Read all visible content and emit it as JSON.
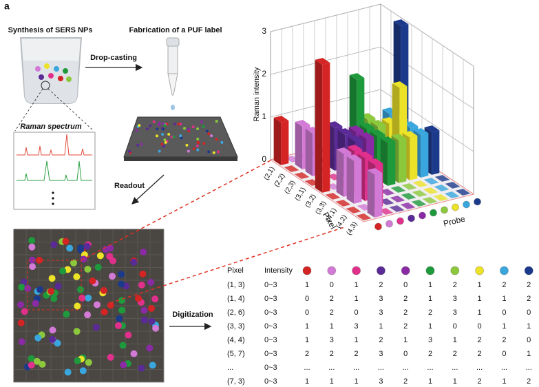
{
  "panel_label": "a",
  "steps": {
    "synthesis": "Synthesis of SERS NPs",
    "fabrication": "Fabrication of a PUF label",
    "drop_casting": "Drop-casting",
    "spectrum": "Raman spectrum",
    "readout": "Readout",
    "digitization": "Digitization"
  },
  "probe_colors": [
    "#d42424",
    "#d27ad6",
    "#e0308c",
    "#5a2a96",
    "#8a2aa4",
    "#1e9a3c",
    "#8cc83c",
    "#ece228",
    "#3aa6de",
    "#1c3a8c"
  ],
  "raman_plot": {
    "z_label": "Raman intensity",
    "zticks": [
      0,
      1,
      2,
      3
    ],
    "pixel_label": "Pixel",
    "probe_label": "Probe",
    "pixels": [
      "(2,1)",
      "(2,2)",
      "(2,3)",
      "(3,1)",
      "(3,2)",
      "(3,3)",
      "(4,1)",
      "(4,2)",
      "(4,3)"
    ],
    "heights": [
      [
        1,
        0,
        0,
        0,
        0,
        0,
        0,
        0,
        0,
        0
      ],
      [
        0,
        1,
        0,
        0,
        0,
        0,
        0,
        0,
        0,
        0
      ],
      [
        0,
        1,
        0,
        1,
        0,
        2,
        1,
        0,
        1,
        3
      ],
      [
        0,
        0,
        0,
        1,
        1,
        1,
        1,
        1,
        1,
        0
      ],
      [
        3,
        0,
        0,
        1,
        1,
        1,
        0,
        2,
        1,
        0
      ],
      [
        0,
        1,
        1,
        0,
        0,
        1,
        1,
        1,
        1,
        1
      ],
      [
        0,
        1,
        1,
        0,
        0,
        0,
        0,
        0,
        0,
        0
      ],
      [
        0,
        0,
        1,
        0,
        0,
        0,
        0,
        0,
        0,
        0
      ],
      [
        0,
        1,
        0,
        0,
        0,
        0,
        0,
        0,
        0,
        0
      ]
    ]
  },
  "table": {
    "header": [
      "Pixel",
      "Intensity"
    ],
    "rows": [
      [
        "(1, 3)",
        "0~3",
        1,
        0,
        1,
        2,
        0,
        1,
        2,
        1,
        2,
        2
      ],
      [
        "(1, 4)",
        "0~3",
        0,
        2,
        1,
        3,
        2,
        1,
        3,
        1,
        1,
        2
      ],
      [
        "(2, 6)",
        "0~3",
        0,
        2,
        0,
        3,
        2,
        2,
        3,
        1,
        0,
        0
      ],
      [
        "(3, 3)",
        "0~3",
        1,
        1,
        3,
        1,
        2,
        1,
        0,
        0,
        1,
        1
      ],
      [
        "(4, 4)",
        "0~3",
        1,
        3,
        1,
        2,
        1,
        3,
        1,
        2,
        2,
        0
      ],
      [
        "(5, 7)",
        "0~3",
        2,
        2,
        2,
        3,
        0,
        2,
        2,
        2,
        0,
        1
      ],
      [
        "...",
        "0~3",
        "...",
        "...",
        "...",
        "...",
        "...",
        "...",
        "...",
        "...",
        "...",
        "..."
      ],
      [
        "(7, 3)",
        "0~3",
        1,
        1,
        1,
        3,
        2,
        1,
        1,
        2,
        1,
        2
      ]
    ]
  }
}
